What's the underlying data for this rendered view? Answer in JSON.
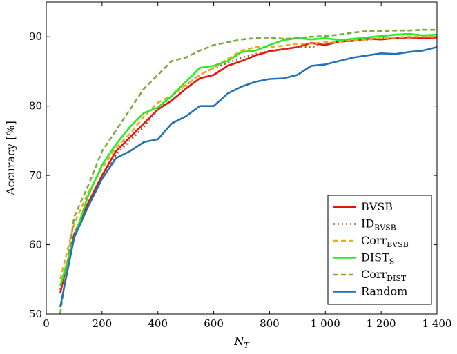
{
  "chart_data": {
    "type": "line",
    "xlabel": "N_T",
    "ylabel": "Accuracy [%]",
    "xlim": [
      0,
      1400
    ],
    "ylim": [
      50,
      95
    ],
    "xticks": [
      0,
      200,
      400,
      600,
      800,
      1000,
      1200,
      1400
    ],
    "yticks": [
      50,
      60,
      70,
      80,
      90
    ],
    "grid": false,
    "legend_position": "bottom-right",
    "series": [
      {
        "name": "BVSB",
        "legend_base": "BVSB",
        "legend_sub": "",
        "color": "#e8120c",
        "dash": "solid",
        "x": [
          50,
          100,
          150,
          200,
          250,
          300,
          350,
          400,
          450,
          500,
          550,
          600,
          650,
          700,
          750,
          800,
          850,
          900,
          950,
          1000,
          1050,
          1100,
          1150,
          1200,
          1250,
          1300,
          1350,
          1400
        ],
        "y": [
          53.0,
          61.5,
          66.0,
          70.0,
          73.5,
          75.5,
          77.5,
          79.5,
          80.8,
          82.5,
          84.0,
          84.5,
          85.8,
          86.5,
          87.3,
          87.9,
          88.2,
          88.5,
          89.1,
          88.8,
          89.3,
          89.4,
          89.7,
          89.6,
          89.8,
          89.9,
          89.8,
          89.9
        ]
      },
      {
        "name": "ID_BVSB",
        "legend_base": "ID",
        "legend_sub": "BVSB",
        "color": "#c8501e",
        "dash": "dotted",
        "x": [
          50,
          100,
          150,
          200,
          250,
          300,
          350,
          400,
          450,
          500,
          550,
          600,
          650,
          700,
          750,
          800,
          850,
          900,
          950,
          1000,
          1050,
          1100,
          1150,
          1200,
          1250,
          1300,
          1350,
          1400
        ],
        "y": [
          53.5,
          61.0,
          65.5,
          69.5,
          73.0,
          75.0,
          77.0,
          79.5,
          81.5,
          83.0,
          84.5,
          85.5,
          86.2,
          87.0,
          87.5,
          88.0,
          88.2,
          88.5,
          88.5,
          89.0,
          89.2,
          89.5,
          89.5,
          89.8,
          89.8,
          89.9,
          89.9,
          90.0
        ]
      },
      {
        "name": "Corr_BVSB",
        "legend_base": "Corr",
        "legend_sub": "BVSB",
        "color": "#f5a623",
        "dash": "dashed",
        "x": [
          50,
          100,
          150,
          200,
          250,
          300,
          350,
          400,
          450,
          500,
          550,
          600,
          650,
          700,
          750,
          800,
          850,
          900,
          950,
          1000,
          1050,
          1100,
          1150,
          1200,
          1250,
          1300,
          1350,
          1400
        ],
        "y": [
          55.0,
          63.0,
          67.5,
          71.0,
          74.0,
          76.0,
          78.5,
          80.5,
          81.5,
          83.0,
          84.5,
          85.5,
          86.8,
          88.0,
          88.5,
          88.5,
          88.7,
          89.0,
          89.0,
          89.2,
          89.3,
          89.5,
          89.6,
          89.8,
          89.9,
          90.0,
          90.0,
          90.0
        ]
      },
      {
        "name": "DIST_S",
        "legend_base": "DIST",
        "legend_sub": "S",
        "color": "#22ee22",
        "dash": "solid",
        "x": [
          50,
          100,
          150,
          200,
          250,
          300,
          350,
          400,
          450,
          500,
          550,
          600,
          650,
          700,
          750,
          800,
          850,
          900,
          950,
          1000,
          1050,
          1100,
          1150,
          1200,
          1250,
          1300,
          1350,
          1400
        ],
        "y": [
          54.0,
          61.0,
          67.0,
          71.5,
          74.5,
          77.0,
          79.0,
          79.8,
          81.5,
          83.5,
          85.5,
          85.8,
          86.5,
          87.8,
          88.0,
          88.8,
          89.5,
          89.8,
          89.6,
          89.8,
          89.5,
          89.7,
          89.9,
          90.1,
          90.3,
          90.4,
          90.2,
          90.3
        ]
      },
      {
        "name": "Corr_DIST",
        "legend_base": "Corr",
        "legend_sub": "DIST",
        "color": "#7aab3c",
        "dash": "dashed",
        "x": [
          50,
          100,
          150,
          200,
          250,
          300,
          350,
          400,
          450,
          500,
          550,
          600,
          650,
          700,
          750,
          800,
          850,
          900,
          950,
          1000,
          1050,
          1100,
          1150,
          1200,
          1250,
          1300,
          1350,
          1400
        ],
        "y": [
          50.0,
          64.0,
          68.5,
          73.5,
          76.5,
          79.5,
          82.5,
          84.5,
          86.5,
          87.0,
          88.0,
          88.8,
          89.2,
          89.6,
          89.8,
          89.9,
          89.7,
          89.8,
          90.0,
          90.1,
          90.3,
          90.6,
          90.8,
          90.8,
          90.9,
          90.9,
          91.0,
          91.0
        ]
      },
      {
        "name": "Random",
        "legend_base": "Random",
        "legend_sub": "",
        "color": "#1f72b8",
        "dash": "solid",
        "x": [
          50,
          100,
          150,
          200,
          250,
          300,
          350,
          400,
          450,
          500,
          550,
          600,
          650,
          700,
          750,
          800,
          850,
          900,
          950,
          1000,
          1050,
          1100,
          1150,
          1200,
          1250,
          1300,
          1350,
          1400
        ],
        "y": [
          51.0,
          61.0,
          65.5,
          69.5,
          72.5,
          73.5,
          74.8,
          75.2,
          77.5,
          78.5,
          80.0,
          80.0,
          81.8,
          82.8,
          83.5,
          83.9,
          84.0,
          84.5,
          85.8,
          86.0,
          86.5,
          87.0,
          87.3,
          87.6,
          87.5,
          87.8,
          88.0,
          88.5
        ]
      }
    ]
  }
}
